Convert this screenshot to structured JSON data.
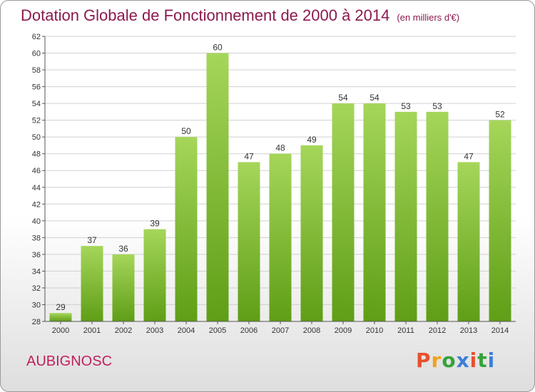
{
  "title": "Dotation Globale de Fonctionnement de 2000 à 2014",
  "unit": "(en milliers d'€)",
  "commune": "AUBIGNOSC",
  "logo": {
    "text": "Proxiti",
    "colors": [
      "#e8502d",
      "#f3a21b",
      "#35a33a",
      "#3d7fd8",
      "#e8502d",
      "#35a33a",
      "#3d7fd8"
    ]
  },
  "colors": {
    "bar_light": "#a5d65a",
    "bar_dark": "#5f9e16",
    "title": "#8b1a4f",
    "commune": "#c0205e"
  },
  "chart_data": {
    "type": "bar",
    "categories": [
      "2000",
      "2001",
      "2002",
      "2003",
      "2004",
      "2005",
      "2006",
      "2007",
      "2008",
      "2009",
      "2010",
      "2011",
      "2012",
      "2013",
      "2014"
    ],
    "values": [
      29,
      37,
      36,
      39,
      50,
      60,
      47,
      48,
      49,
      54,
      54,
      53,
      53,
      47,
      52
    ],
    "ylim": [
      28,
      62
    ],
    "yticks": [
      28,
      30,
      32,
      34,
      36,
      38,
      40,
      42,
      44,
      46,
      48,
      50,
      52,
      54,
      56,
      58,
      60,
      62
    ],
    "grid": true,
    "data_labels": true
  }
}
